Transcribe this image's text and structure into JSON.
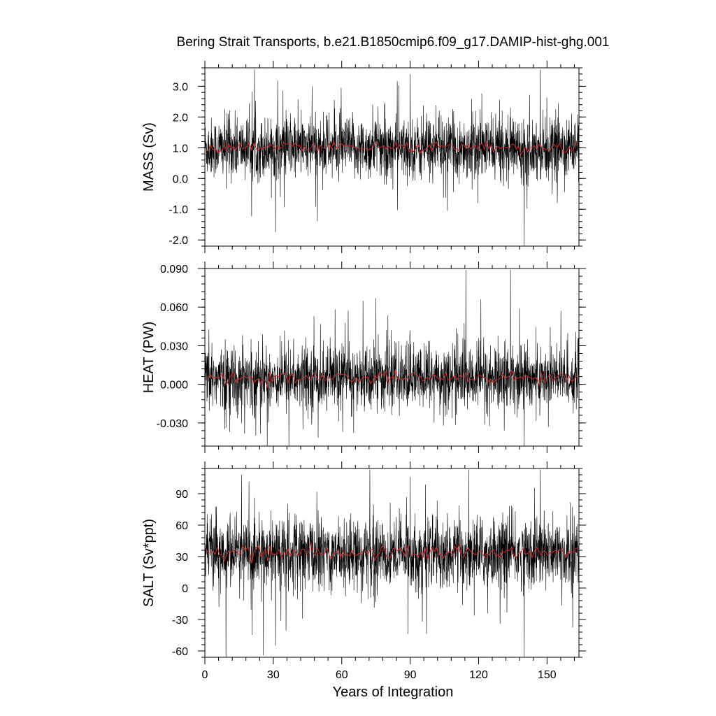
{
  "title": "Bering Strait Transports, b.e21.B1850cmip6.f09_g17.DAMIP-hist-ghg.001",
  "colors": {
    "monthly": "#000000",
    "annual": "#d62728",
    "axes": "#000000"
  },
  "chart_data": [
    {
      "type": "line",
      "panel": "mass",
      "ylabel": "MASS (Sv)",
      "ylim": [
        -2.2,
        3.6
      ],
      "yticks": [
        -2.0,
        -1.0,
        0.0,
        1.0,
        2.0,
        3.0
      ],
      "ytick_labels": [
        "-2.0",
        "-1.0",
        "0.0",
        "1.0",
        "2.0",
        "3.0"
      ],
      "xlim": [
        0,
        164
      ],
      "series": [
        {
          "kind": "monthly",
          "mean": 1.0,
          "sd": 0.48,
          "min": -2.2,
          "max": 3.55,
          "note_peaks": [
            [
              47,
              3.0
            ],
            [
              90,
              3.4
            ],
            [
              147,
              3.55
            ],
            [
              140,
              -2.2
            ],
            [
              31,
              -1.75
            ]
          ]
        },
        {
          "kind": "annual",
          "mean": 1.0,
          "sd": 0.12
        }
      ]
    },
    {
      "type": "line",
      "panel": "heat",
      "ylabel": "HEAT (PW)",
      "ylim": [
        -0.048,
        0.09
      ],
      "yticks": [
        -0.03,
        0.0,
        0.03,
        0.06,
        0.09
      ],
      "ytick_labels": [
        "-0.030",
        "0.000",
        "0.030",
        "0.060",
        "0.090"
      ],
      "xlim": [
        0,
        164
      ],
      "series": [
        {
          "kind": "monthly",
          "mean": 0.005,
          "sd": 0.012,
          "min": -0.048,
          "max": 0.089,
          "note_peaks": [
            [
              134,
              0.089
            ],
            [
              140,
              -0.048
            ],
            [
              75,
              0.067
            ],
            [
              121,
              0.066
            ]
          ]
        },
        {
          "kind": "annual",
          "mean": 0.005,
          "sd": 0.003
        }
      ]
    },
    {
      "type": "line",
      "panel": "salt",
      "ylabel": "SALT (Sv*ppt)",
      "ylim": [
        -66,
        114
      ],
      "yticks": [
        -60,
        -30,
        0,
        30,
        60,
        90
      ],
      "ytick_labels": [
        "-60",
        "-30",
        "0",
        "30",
        "60",
        "90"
      ],
      "xlim": [
        0,
        164
      ],
      "series": [
        {
          "kind": "monthly",
          "mean": 33,
          "sd": 16,
          "min": -66,
          "max": 113,
          "note_peaks": [
            [
              147,
              113
            ],
            [
              90,
              106
            ],
            [
              140,
              -66
            ],
            [
              31,
              -55
            ]
          ]
        },
        {
          "kind": "annual",
          "mean": 34,
          "sd": 4
        }
      ]
    }
  ],
  "xaxis": {
    "label": "Years of Integration",
    "ticks": [
      0,
      30,
      60,
      90,
      120,
      150
    ],
    "tick_labels": [
      "0",
      "30",
      "60",
      "90",
      "120",
      "150"
    ]
  }
}
